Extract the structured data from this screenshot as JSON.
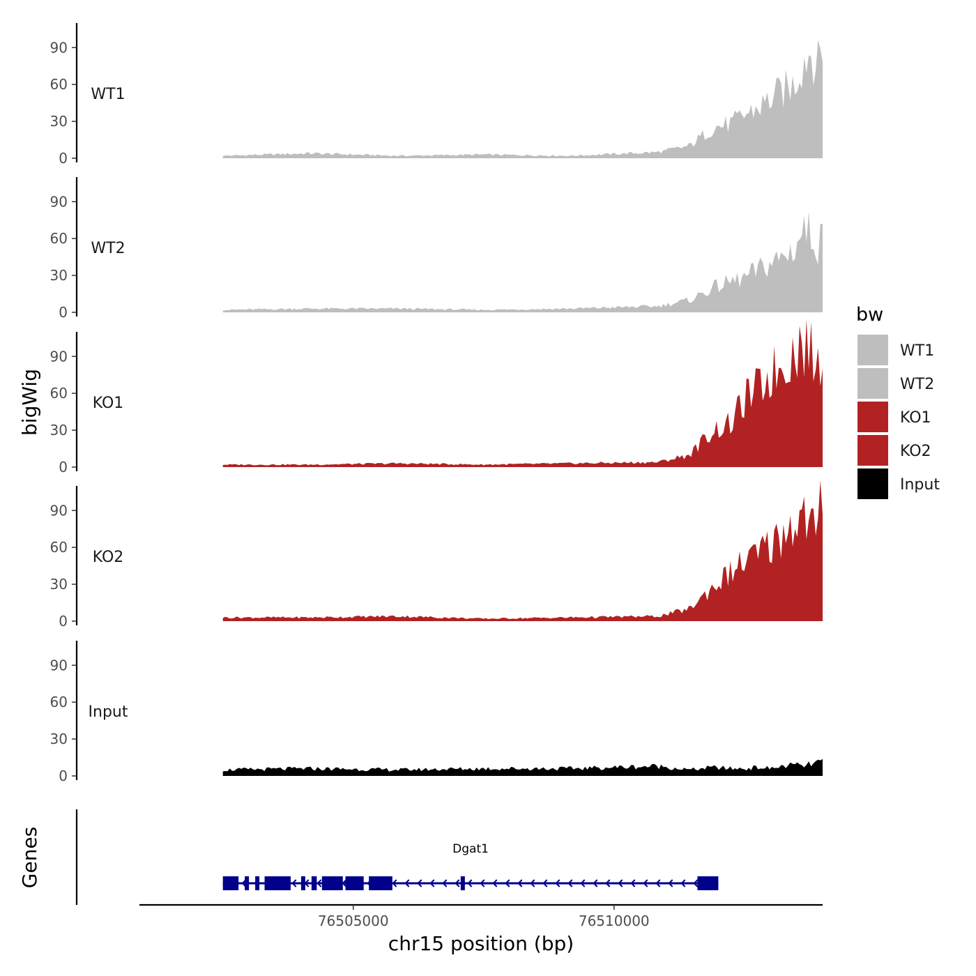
{
  "chart_data": {
    "type": "area",
    "chromosome": "chr15",
    "xlabel": "chr15 position (bp)",
    "ylabel": "bigWig",
    "genes_label": "Genes",
    "xlim": [
      76500900,
      76514000
    ],
    "x_ticks": [
      76505000,
      76510000
    ],
    "x_tick_labels": [
      "76505000",
      "76510000"
    ],
    "ylim": [
      0,
      110
    ],
    "y_ticks": [
      0,
      30,
      60,
      90
    ],
    "y_tick_labels": [
      "0",
      "30",
      "60",
      "90"
    ],
    "grid": false,
    "legend": {
      "title": "bw",
      "position": "right",
      "entries": [
        {
          "label": "WT1",
          "color": "#bebebe"
        },
        {
          "label": "WT2",
          "color": "#bebebe"
        },
        {
          "label": "KO1",
          "color": "#b22222"
        },
        {
          "label": "KO2",
          "color": "#b22222"
        },
        {
          "label": "Input",
          "color": "#000000"
        }
      ]
    },
    "x": [
      76502500,
      76504150,
      76505850,
      76507500,
      76509150,
      76510850,
      76511450,
      76511900,
      76512250,
      76512500,
      76512800,
      76513000,
      76513250,
      76513450,
      76513650,
      76513800,
      76513900,
      76514000
    ],
    "series": [
      {
        "name": "WT1",
        "color": "#bebebe",
        "values": [
          2,
          4,
          2,
          3,
          2,
          5,
          10,
          25,
          28,
          35,
          42,
          48,
          55,
          60,
          82,
          88,
          72,
          96
        ]
      },
      {
        "name": "WT2",
        "color": "#bebebe",
        "values": [
          2,
          3,
          3,
          2,
          3,
          5,
          10,
          20,
          25,
          28,
          35,
          40,
          45,
          52,
          68,
          62,
          55,
          60
        ]
      },
      {
        "name": "KO1",
        "color": "#b22222",
        "values": [
          2,
          2,
          3,
          2,
          3,
          4,
          10,
          30,
          35,
          55,
          65,
          75,
          85,
          95,
          102,
          90,
          80,
          95
        ]
      },
      {
        "name": "KO2",
        "color": "#b22222",
        "values": [
          3,
          3,
          4,
          2,
          3,
          4,
          10,
          28,
          40,
          48,
          55,
          62,
          72,
          82,
          85,
          78,
          65,
          110
        ]
      },
      {
        "name": "Input",
        "color": "#000000",
        "values": [
          5,
          6,
          5,
          6,
          6,
          8,
          5,
          7,
          6,
          6,
          7,
          6,
          8,
          9,
          8,
          10,
          11,
          12
        ]
      }
    ],
    "gene": {
      "name": "Dgat1",
      "color": "#00008b",
      "start": 76502500,
      "end": 76512000,
      "strand": "-",
      "exons": [
        [
          76502500,
          76502800
        ],
        [
          76502920,
          76503000
        ],
        [
          76503120,
          76503200
        ],
        [
          76503300,
          76503800
        ],
        [
          76504000,
          76504080
        ],
        [
          76504200,
          76504300
        ],
        [
          76504400,
          76504800
        ],
        [
          76504850,
          76505200
        ],
        [
          76505300,
          76505750
        ],
        [
          76507060,
          76507140
        ],
        [
          76511600,
          76512000
        ]
      ]
    }
  }
}
